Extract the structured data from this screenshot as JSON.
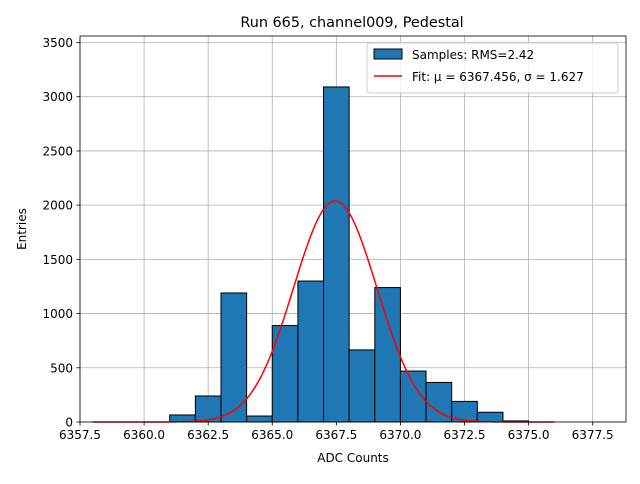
{
  "chart_data": {
    "type": "bar",
    "title": "Run 665, channel009, Pedestal",
    "xlabel": "ADC Counts",
    "ylabel": "Entries",
    "xlim": [
      6357.5,
      6378.8
    ],
    "ylim": [
      0,
      3560
    ],
    "xticks": [
      6357.5,
      6360.0,
      6362.5,
      6365.0,
      6367.5,
      6370.0,
      6372.5,
      6375.0,
      6377.5
    ],
    "xtick_labels": [
      "6357.5",
      "6360.0",
      "6362.5",
      "6365.0",
      "6367.5",
      "6370.0",
      "6372.5",
      "6375.0",
      "6377.5"
    ],
    "yticks": [
      0,
      500,
      1000,
      1500,
      2000,
      2500,
      3000,
      3500
    ],
    "ytick_labels": [
      "0",
      "500",
      "1000",
      "1500",
      "2000",
      "2500",
      "3000",
      "3500"
    ],
    "grid": true,
    "legend_position": "top-right",
    "histogram": {
      "name": "Samples: RMS=2.42",
      "color": "#1f77b4",
      "edge_color": "#000000",
      "bins": [
        {
          "x0": 6361.0,
          "x1": 6362.0,
          "count": 65
        },
        {
          "x0": 6362.0,
          "x1": 6363.0,
          "count": 240
        },
        {
          "x0": 6363.0,
          "x1": 6364.0,
          "count": 1190
        },
        {
          "x0": 6364.0,
          "x1": 6365.0,
          "count": 55
        },
        {
          "x0": 6365.0,
          "x1": 6366.0,
          "count": 890
        },
        {
          "x0": 6366.0,
          "x1": 6367.0,
          "count": 1300
        },
        {
          "x0": 6367.0,
          "x1": 6368.0,
          "count": 3090
        },
        {
          "x0": 6368.0,
          "x1": 6369.0,
          "count": 665
        },
        {
          "x0": 6369.0,
          "x1": 6370.0,
          "count": 1240
        },
        {
          "x0": 6370.0,
          "x1": 6371.0,
          "count": 470
        },
        {
          "x0": 6371.0,
          "x1": 6372.0,
          "count": 365
        },
        {
          "x0": 6372.0,
          "x1": 6373.0,
          "count": 190
        },
        {
          "x0": 6373.0,
          "x1": 6374.0,
          "count": 90
        },
        {
          "x0": 6374.0,
          "x1": 6375.0,
          "count": 10
        }
      ]
    },
    "fit": {
      "name": "Fit: μ = 6367.456, σ = 1.627",
      "color": "#ff0000",
      "mu": 6367.456,
      "sigma": 1.627,
      "amplitude": 2040,
      "x_range": [
        6358.0,
        6376.0
      ]
    }
  }
}
